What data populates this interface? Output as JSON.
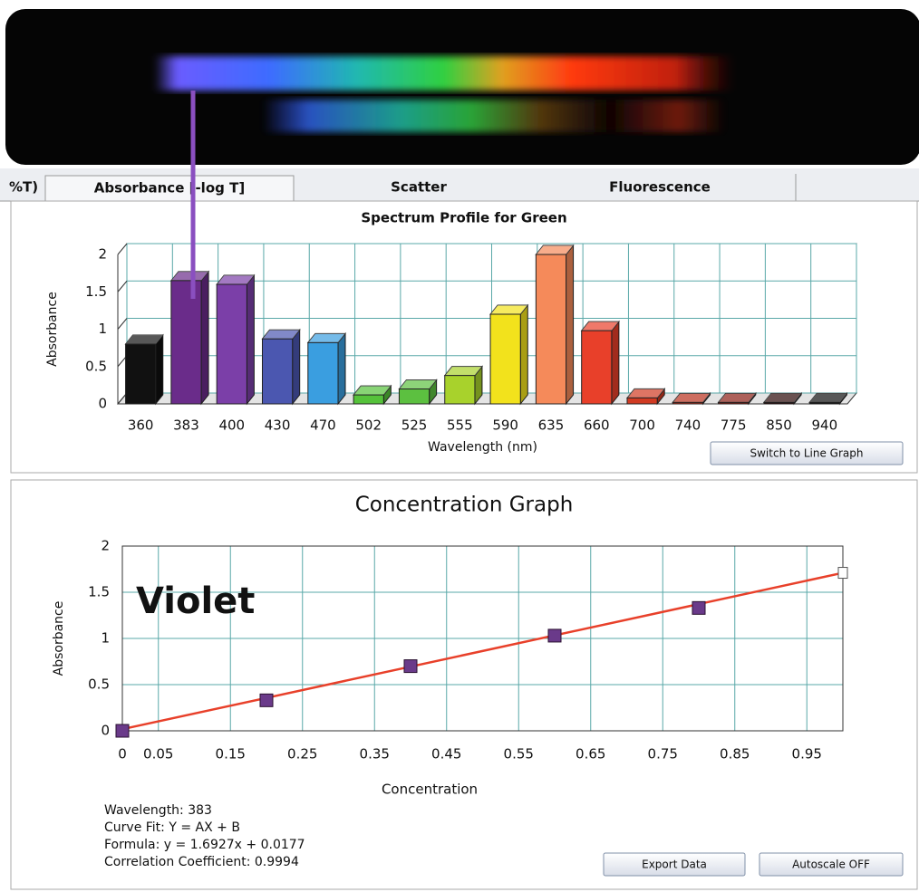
{
  "tabs": [
    "%T)",
    "Absorbance [-log T]",
    "Scatter",
    "Fluorescence"
  ],
  "chart_data": [
    {
      "type": "bar3d",
      "title": "Spectrum Profile for Green",
      "x_label": "Wavelength (nm)",
      "y_label": "Absorbance",
      "categories": [
        "360",
        "383",
        "400",
        "430",
        "470",
        "502",
        "525",
        "555",
        "590",
        "635",
        "660",
        "700",
        "740",
        "775",
        "850",
        "940"
      ],
      "values": [
        0.8,
        1.65,
        1.6,
        0.87,
        0.82,
        0.12,
        0.2,
        0.38,
        1.2,
        2.0,
        0.98,
        0.08,
        0.02,
        0.02,
        0.02,
        0.02
      ],
      "colors": [
        "#111111",
        "#6a2c8a",
        "#7b3fa8",
        "#4b57b0",
        "#3a9ee0",
        "#55c23a",
        "#5cc040",
        "#a8d22c",
        "#f2e21c",
        "#f58a5a",
        "#e8402a",
        "#d03a22",
        "#b8301c",
        "#8a1e14",
        "#2a0806",
        "#111111"
      ],
      "ylim": [
        0,
        2
      ],
      "yticks": [
        0,
        0.5,
        1,
        1.5,
        2
      ],
      "grid": true
    },
    {
      "type": "scatter",
      "title": "Concentration Graph",
      "x_label": "Concentration",
      "y_label": "Absorbance",
      "annotation": "Violet",
      "x": [
        0,
        0.2,
        0.4,
        0.6,
        0.8
      ],
      "values": [
        0,
        0.33,
        0.7,
        1.03,
        1.33
      ],
      "color": "#6a3a8a",
      "fit": {
        "x": [
          0,
          1
        ],
        "y": [
          0.0177,
          1.7104
        ],
        "color": "#e8402a"
      },
      "xlim": [
        0,
        1
      ],
      "xticks": [
        0,
        0.05,
        0.15,
        0.25,
        0.35,
        0.45,
        0.55,
        0.65,
        0.75,
        0.85,
        0.95
      ],
      "ylim": [
        0,
        2
      ],
      "yticks": [
        0,
        0.5,
        1,
        1.5,
        2
      ],
      "grid": true
    }
  ],
  "buttons": [
    "Switch to Line Graph",
    "Export Data",
    "Autoscale OFF"
  ],
  "info": [
    "Wavelength:  383",
    "Curve Fit: Y = AX + B",
    "Formula: y = 1.6927x + 0.0177",
    "Correlation Coefficient: 0.9994"
  ]
}
